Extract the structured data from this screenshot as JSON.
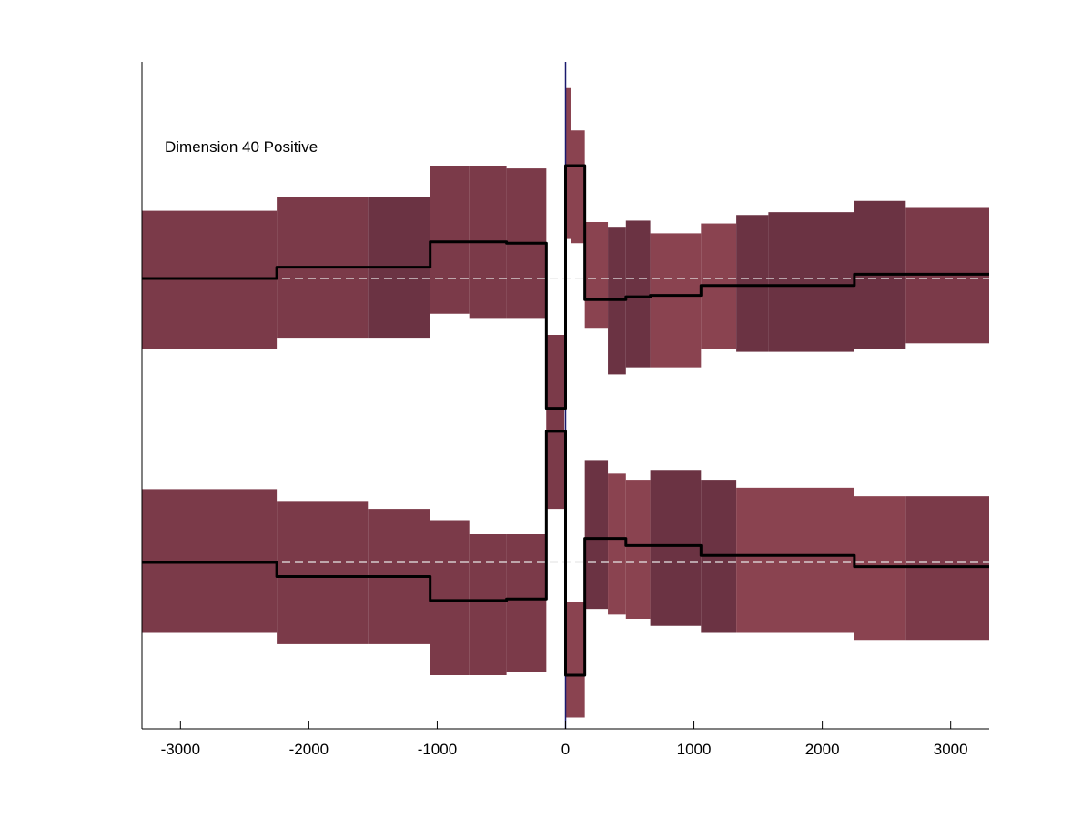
{
  "chart_data": {
    "type": "line",
    "annotation": "Dimension 40 Positive",
    "xlim": [
      -3300,
      3300
    ],
    "xticks": [
      -3000,
      -2000,
      -1000,
      0,
      1000,
      2000,
      3000
    ],
    "xtick_labels": [
      "-3000",
      "-2000",
      "-1000",
      "0",
      "1000",
      "2000",
      "3000"
    ],
    "yaxis_ticks_shown": false,
    "vertical_line_x": 0,
    "colors": {
      "band_medium": "#7B3A49",
      "band_dark": "#6B3343",
      "band_light": "#8A4350",
      "line": "#000000",
      "baseline": "#E6E6E6",
      "zero_line": "#1A1A6E"
    },
    "panels": [
      {
        "name": "upper",
        "baseline": 0,
        "segments": [
          {
            "x0": -3300,
            "x1": -2250,
            "mean": 0,
            "lo": -0.5,
            "hi": 0.48,
            "tone": "medium"
          },
          {
            "x0": -2250,
            "x1": -1540,
            "mean": 0.08,
            "lo": -0.42,
            "hi": 0.58,
            "tone": "medium"
          },
          {
            "x0": -1540,
            "x1": -1055,
            "mean": 0.08,
            "lo": -0.42,
            "hi": 0.58,
            "tone": "dark"
          },
          {
            "x0": -1055,
            "x1": -750,
            "mean": 0.26,
            "lo": -0.25,
            "hi": 0.8,
            "tone": "medium"
          },
          {
            "x0": -750,
            "x1": -460,
            "mean": 0.26,
            "lo": -0.28,
            "hi": 0.8,
            "tone": "medium"
          },
          {
            "x0": -460,
            "x1": -150,
            "mean": 0.25,
            "lo": -0.28,
            "hi": 0.78,
            "tone": "medium"
          },
          {
            "x0": -150,
            "x1": -10,
            "mean": -0.92,
            "lo": -1.1,
            "hi": -0.4,
            "tone": "medium"
          },
          {
            "x0": 0,
            "x1": 40,
            "mean": 0.8,
            "lo": 0.28,
            "hi": 1.35,
            "tone": "light"
          },
          {
            "x0": 40,
            "x1": 150,
            "mean": 0.8,
            "lo": 0.25,
            "hi": 1.05,
            "tone": "light"
          },
          {
            "x0": 150,
            "x1": 330,
            "mean": -0.15,
            "lo": -0.35,
            "hi": 0.4,
            "tone": "light"
          },
          {
            "x0": 330,
            "x1": 470,
            "mean": -0.15,
            "lo": -0.68,
            "hi": 0.36,
            "tone": "dark"
          },
          {
            "x0": 470,
            "x1": 660,
            "mean": -0.13,
            "lo": -0.63,
            "hi": 0.41,
            "tone": "dark"
          },
          {
            "x0": 660,
            "x1": 1055,
            "mean": -0.12,
            "lo": -0.63,
            "hi": 0.32,
            "tone": "light"
          },
          {
            "x0": 1055,
            "x1": 1330,
            "mean": -0.05,
            "lo": -0.5,
            "hi": 0.39,
            "tone": "light"
          },
          {
            "x0": 1330,
            "x1": 1580,
            "mean": -0.05,
            "lo": -0.52,
            "hi": 0.45,
            "tone": "dark"
          },
          {
            "x0": 1580,
            "x1": 2250,
            "mean": -0.05,
            "lo": -0.52,
            "hi": 0.47,
            "tone": "dark"
          },
          {
            "x0": 2250,
            "x1": 2650,
            "mean": 0.03,
            "lo": -0.5,
            "hi": 0.55,
            "tone": "dark"
          },
          {
            "x0": 2650,
            "x1": 3300,
            "mean": 0.03,
            "lo": -0.46,
            "hi": 0.5,
            "tone": "medium"
          }
        ]
      },
      {
        "name": "lower",
        "baseline": 0,
        "segments": [
          {
            "x0": -3300,
            "x1": -2250,
            "mean": 0,
            "lo": -0.5,
            "hi": 0.52,
            "tone": "medium"
          },
          {
            "x0": -2250,
            "x1": -1540,
            "mean": -0.1,
            "lo": -0.58,
            "hi": 0.43,
            "tone": "medium"
          },
          {
            "x0": -1540,
            "x1": -1055,
            "mean": -0.1,
            "lo": -0.58,
            "hi": 0.38,
            "tone": "medium"
          },
          {
            "x0": -1055,
            "x1": -750,
            "mean": -0.27,
            "lo": -0.8,
            "hi": 0.3,
            "tone": "medium"
          },
          {
            "x0": -750,
            "x1": -460,
            "mean": -0.27,
            "lo": -0.8,
            "hi": 0.2,
            "tone": "medium"
          },
          {
            "x0": -460,
            "x1": -150,
            "mean": -0.26,
            "lo": -0.78,
            "hi": 0.2,
            "tone": "medium"
          },
          {
            "x0": -150,
            "x1": -10,
            "mean": 0.93,
            "lo": 0.38,
            "hi": 1.1,
            "tone": "medium"
          },
          {
            "x0": 0,
            "x1": 40,
            "mean": -0.8,
            "lo": -1.1,
            "hi": -0.28,
            "tone": "light"
          },
          {
            "x0": 40,
            "x1": 150,
            "mean": -0.8,
            "lo": -1.1,
            "hi": -0.28,
            "tone": "light"
          },
          {
            "x0": 150,
            "x1": 330,
            "mean": 0.17,
            "lo": -0.33,
            "hi": 0.72,
            "tone": "dark"
          },
          {
            "x0": 330,
            "x1": 470,
            "mean": 0.17,
            "lo": -0.37,
            "hi": 0.63,
            "tone": "light"
          },
          {
            "x0": 470,
            "x1": 660,
            "mean": 0.12,
            "lo": -0.4,
            "hi": 0.58,
            "tone": "light"
          },
          {
            "x0": 660,
            "x1": 1055,
            "mean": 0.12,
            "lo": -0.45,
            "hi": 0.65,
            "tone": "dark"
          },
          {
            "x0": 1055,
            "x1": 1330,
            "mean": 0.05,
            "lo": -0.5,
            "hi": 0.58,
            "tone": "dark"
          },
          {
            "x0": 1330,
            "x1": 2250,
            "mean": 0.05,
            "lo": -0.5,
            "hi": 0.53,
            "tone": "light"
          },
          {
            "x0": 2250,
            "x1": 2650,
            "mean": -0.03,
            "lo": -0.55,
            "hi": 0.47,
            "tone": "light"
          },
          {
            "x0": 2650,
            "x1": 3300,
            "mean": -0.03,
            "lo": -0.55,
            "hi": 0.47,
            "tone": "medium"
          }
        ]
      }
    ]
  }
}
